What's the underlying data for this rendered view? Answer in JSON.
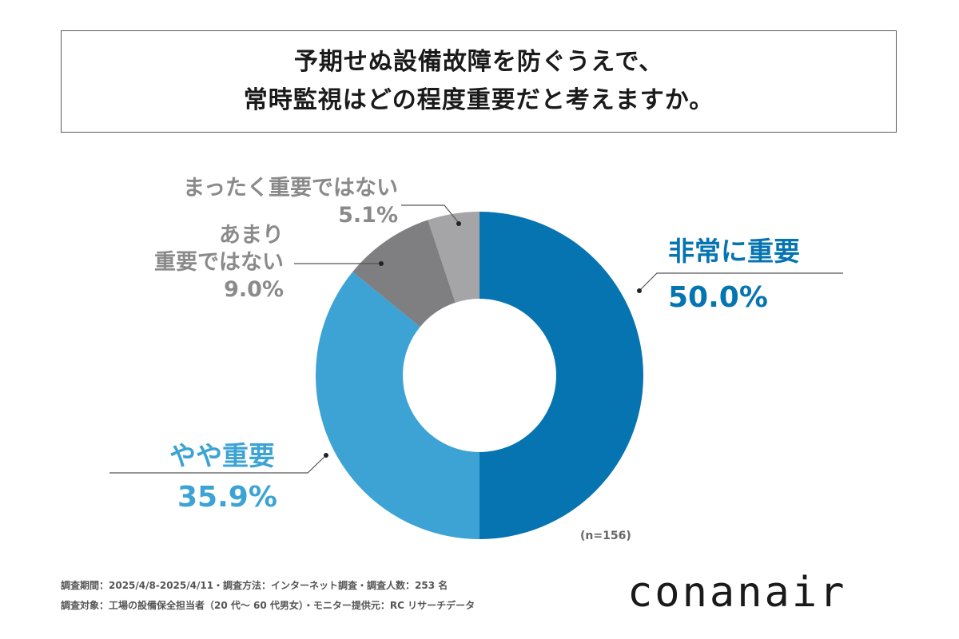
{
  "title": {
    "line1": "予期せぬ設備故障を防ぐうえで、",
    "line2": "常時監視はどの程度重要だと考えますか。"
  },
  "chart_data": {
    "type": "pie",
    "subtype": "donut",
    "title": "予期せぬ設備故障を防ぐうえで、常時監視はどの程度重要だと考えますか。",
    "slices": [
      {
        "label": "非常に重要",
        "value": 50.0,
        "display": "50.0%",
        "color": "#0574b1"
      },
      {
        "label": "やや重要",
        "value": 35.9,
        "display": "35.9%",
        "color": "#3ca3d4"
      },
      {
        "label": "あまり重要ではない",
        "label_lines": [
          "あまり",
          "重要ではない"
        ],
        "value": 9.0,
        "display": "9.0%",
        "color": "#7f7f82"
      },
      {
        "label": "まったく重要ではない",
        "value": 5.1,
        "display": "5.1%",
        "color": "#a5a5a8"
      }
    ],
    "start": "top",
    "direction": "clockwise",
    "n_label": "(n=156)"
  },
  "footer": {
    "line1": "調査期間：2025/4/8-2025/4/11・調査方法：インターネット調査・調査人数：253 名",
    "line2": "調査対象：工場の設備保全担当者（20 代～ 60 代男女）・モニター提供元：RC リサーチデータ"
  },
  "logo": "conanair"
}
